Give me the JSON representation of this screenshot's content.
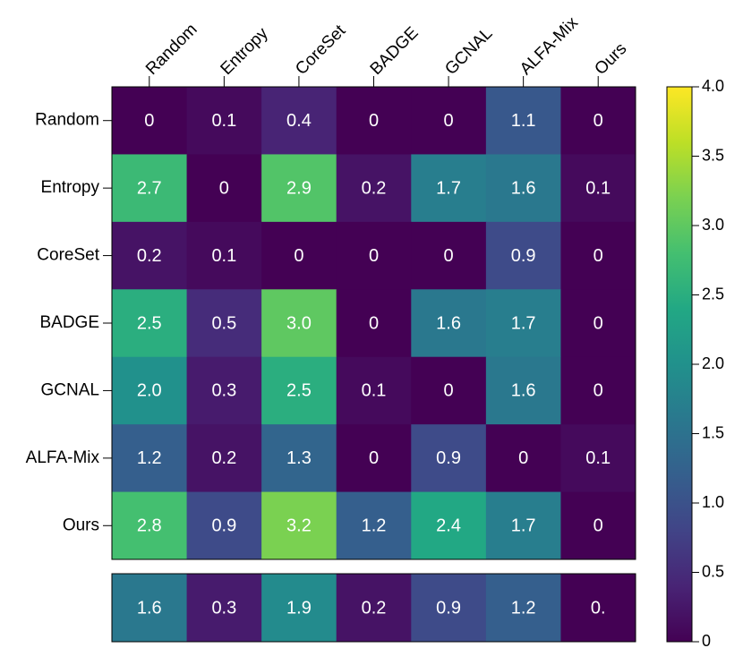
{
  "chart_data": {
    "type": "heatmap",
    "x_categories": [
      "Random",
      "Entropy",
      "CoreSet",
      "BADGE",
      "GCNAL",
      "ALFA-Mix",
      "Ours"
    ],
    "y_categories": [
      "Random",
      "Entropy",
      "CoreSet",
      "BADGE",
      "GCNAL",
      "ALFA-Mix",
      "Ours"
    ],
    "values": [
      [
        0,
        0.1,
        0.4,
        0,
        0,
        1.1,
        0
      ],
      [
        2.7,
        0,
        2.9,
        0.2,
        1.7,
        1.6,
        0.1
      ],
      [
        0.2,
        0.1,
        0,
        0,
        0,
        0.9,
        0
      ],
      [
        2.5,
        0.5,
        3.0,
        0,
        1.6,
        1.7,
        0
      ],
      [
        2.0,
        0.3,
        2.5,
        0.1,
        0,
        1.6,
        0
      ],
      [
        1.2,
        0.2,
        1.3,
        0,
        0.9,
        0,
        0.1
      ],
      [
        2.8,
        0.9,
        3.2,
        1.2,
        2.4,
        1.7,
        0
      ]
    ],
    "value_labels": [
      [
        "0",
        "0.1",
        "0.4",
        "0",
        "0",
        "1.1",
        "0"
      ],
      [
        "2.7",
        "0",
        "2.9",
        "0.2",
        "1.7",
        "1.6",
        "0.1"
      ],
      [
        "0.2",
        "0.1",
        "0",
        "0",
        "0",
        "0.9",
        "0"
      ],
      [
        "2.5",
        "0.5",
        "3.0",
        "0",
        "1.6",
        "1.7",
        "0"
      ],
      [
        "2.0",
        "0.3",
        "2.5",
        "0.1",
        "0",
        "1.6",
        "0"
      ],
      [
        "1.2",
        "0.2",
        "1.3",
        "0",
        "0.9",
        "0",
        "0.1"
      ],
      [
        "2.8",
        "0.9",
        "3.2",
        "1.2",
        "2.4",
        "1.7",
        "0"
      ]
    ],
    "summary_values": [
      1.6,
      0.3,
      1.9,
      0.2,
      0.9,
      1.2,
      0
    ],
    "summary_value_labels": [
      "1.6",
      "0.3",
      "1.9",
      "0.2",
      "0.9",
      "1.2",
      "0."
    ],
    "colormap": "viridis",
    "zlim": [
      0,
      4
    ],
    "zticks": [
      0,
      0.5,
      {
        "value": 1,
        "label": "1.0"
      },
      1.5,
      {
        "value": 2,
        "label": "2.0"
      },
      2.5,
      {
        "value": 3,
        "label": "3.0"
      },
      3.5,
      {
        "value": 4,
        "label": "4.0"
      }
    ]
  }
}
